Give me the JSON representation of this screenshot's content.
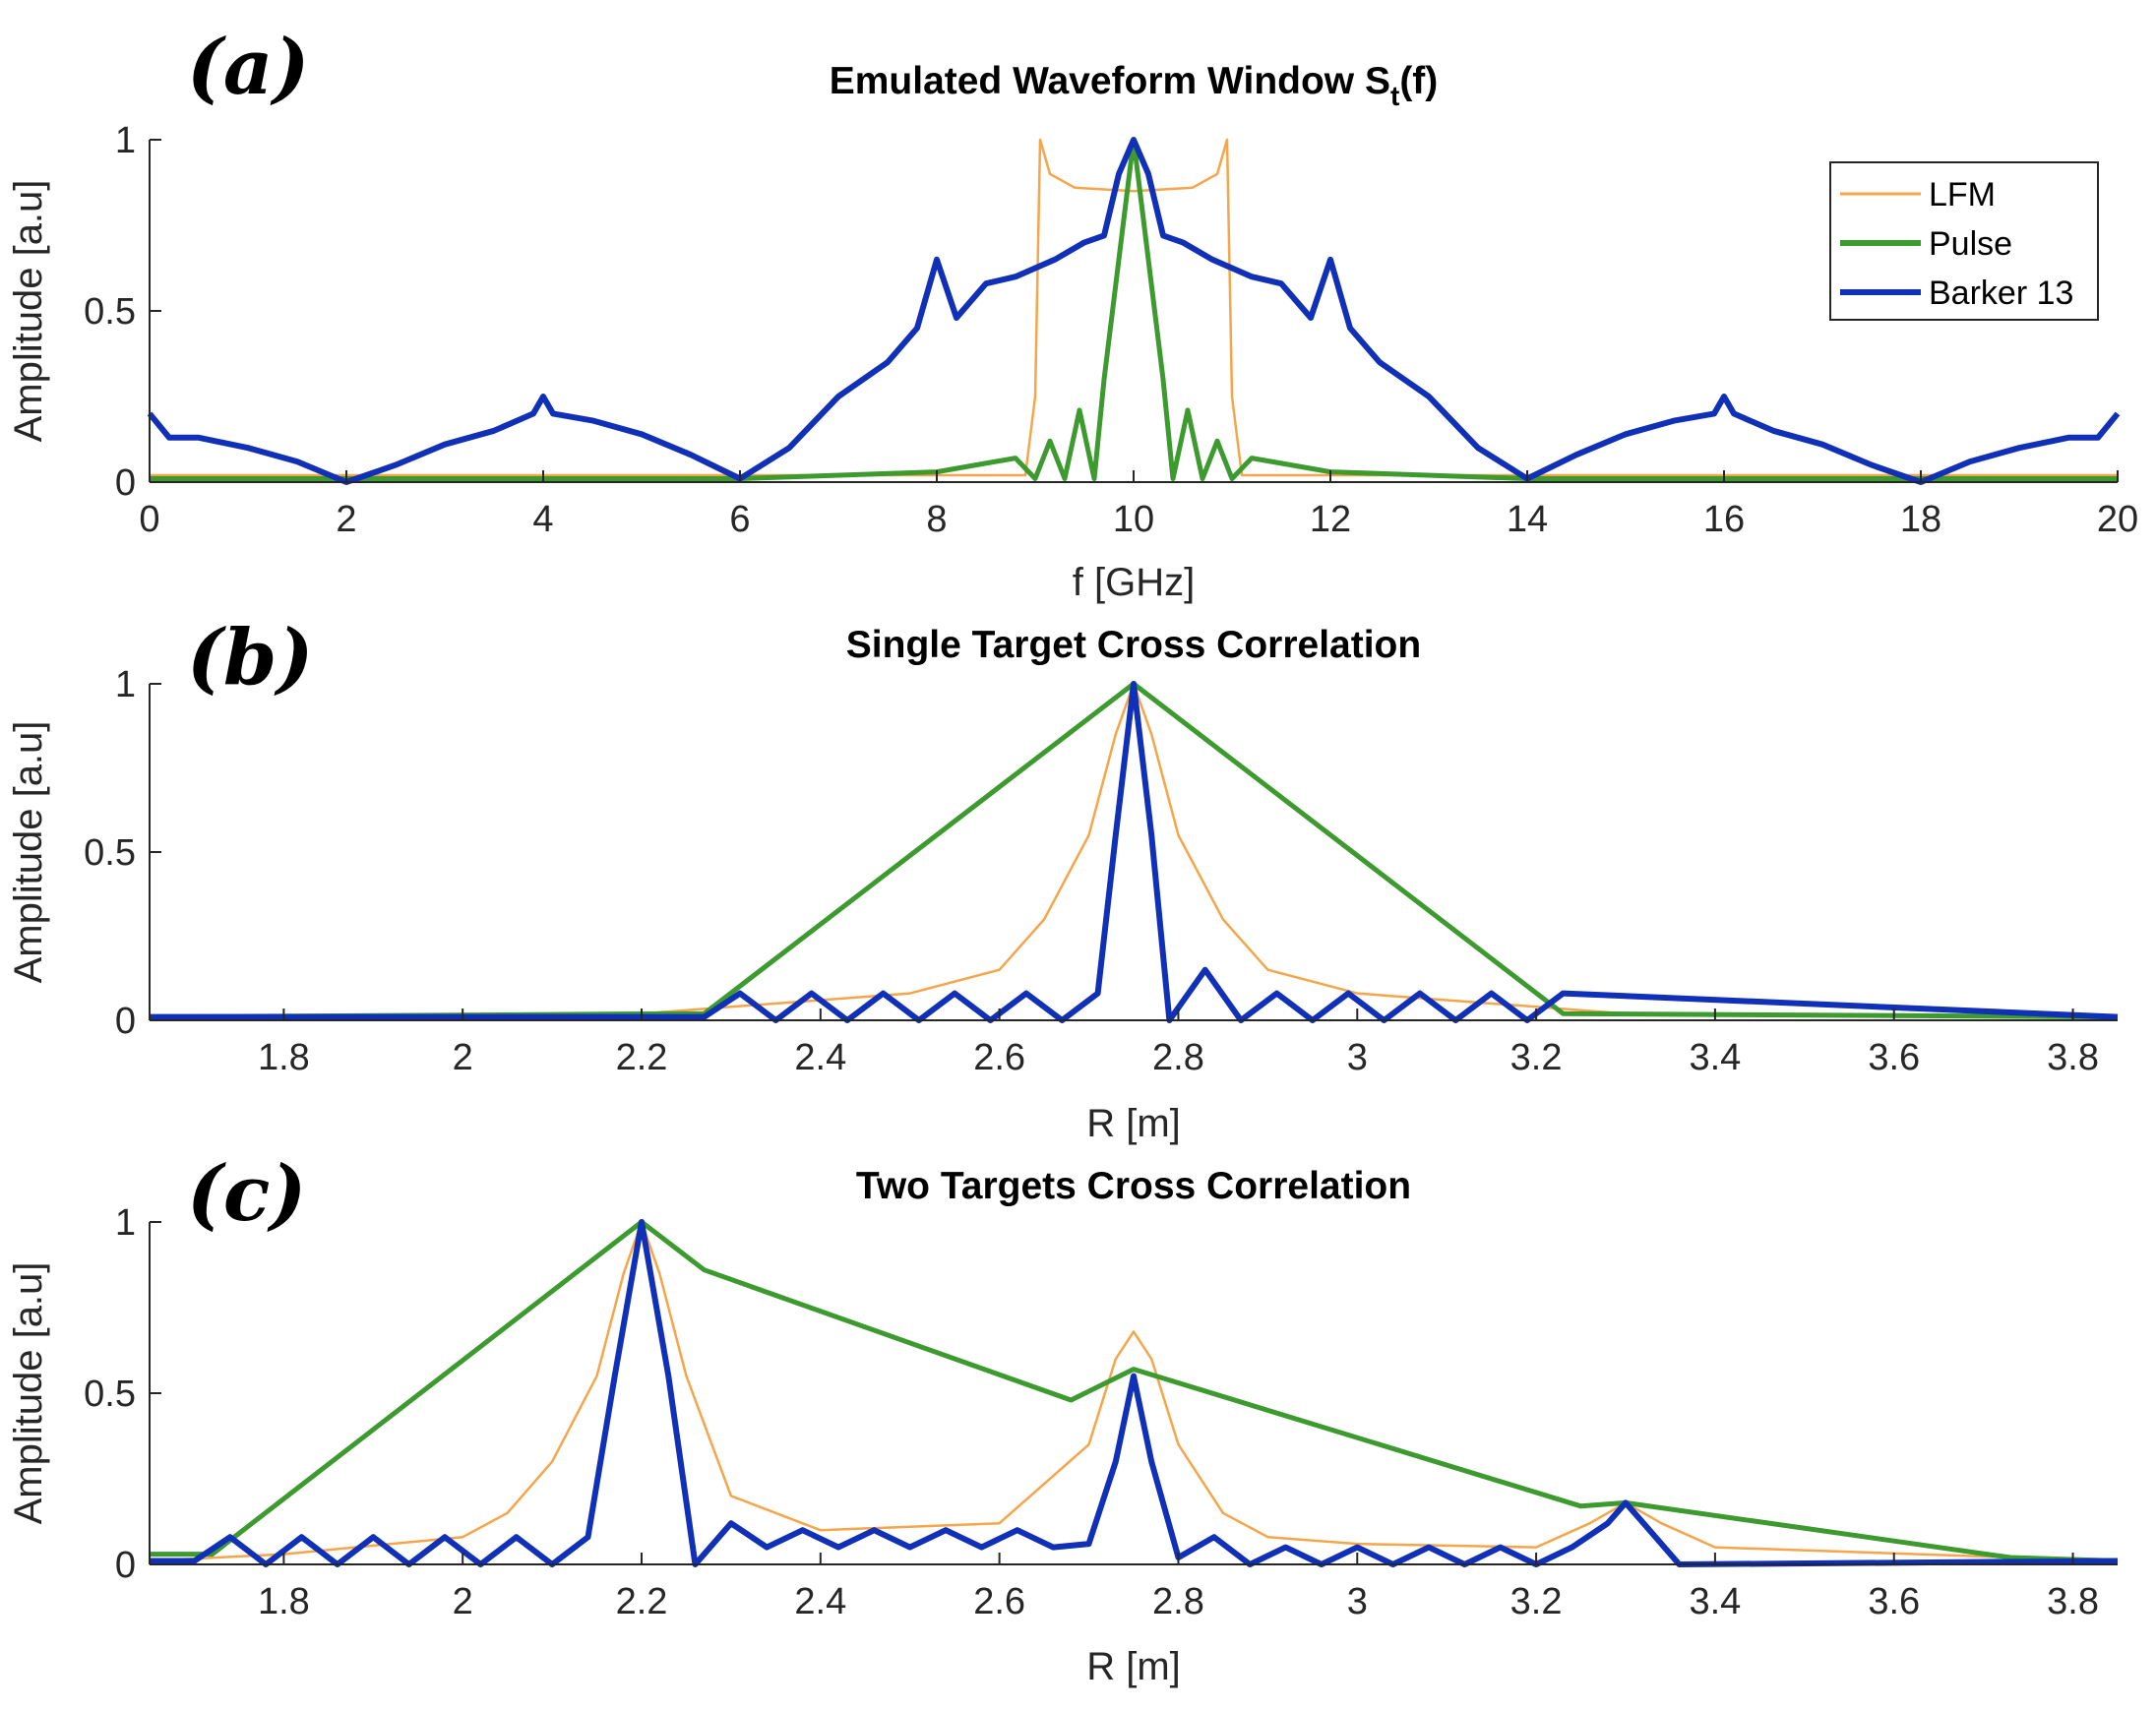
{
  "colors": {
    "lfm": "#F5A54A",
    "pulse": "#3C9A2E",
    "barker": "#1030B8"
  },
  "legend": {
    "items": [
      {
        "key": "lfm",
        "label": "LFM"
      },
      {
        "key": "pulse",
        "label": "Pulse"
      },
      {
        "key": "barker",
        "label": "Barker 13"
      }
    ]
  },
  "chart_data": [
    {
      "id": "a",
      "tag": "(a)",
      "type": "line",
      "title": "Emulated Waveform Window S",
      "title_subscript": "t",
      "title_suffix": "(f)",
      "xlabel": "f [GHz]",
      "ylabel": "Amplitude [a.u]",
      "xlim": [
        0,
        20
      ],
      "ylim": [
        0,
        1
      ],
      "xticks": [
        0,
        2,
        4,
        6,
        8,
        10,
        12,
        14,
        16,
        18,
        20
      ],
      "xtick_labels": [
        "0",
        "2",
        "4",
        "6",
        "8",
        "10",
        "12",
        "14",
        "16",
        "18",
        "20"
      ],
      "yticks": [
        0,
        0.5,
        1
      ],
      "ytick_labels": [
        "0",
        "0.5",
        "1"
      ],
      "series": [
        {
          "name": "LFM",
          "key": "lfm",
          "x": [
            0,
            8.9,
            9.0,
            9.05,
            9.15,
            9.4,
            10,
            10.6,
            10.85,
            10.95,
            11.0,
            11.1,
            20
          ],
          "y": [
            0.02,
            0.02,
            0.25,
            1.0,
            0.9,
            0.86,
            0.85,
            0.86,
            0.9,
            1.0,
            0.25,
            0.02,
            0.02
          ]
        },
        {
          "name": "Pulse",
          "key": "pulse",
          "x": [
            0,
            6,
            8,
            8.8,
            9.0,
            9.15,
            9.3,
            9.45,
            9.6,
            9.7,
            9.85,
            10,
            10.15,
            10.3,
            10.4,
            10.55,
            10.7,
            10.85,
            11.0,
            11.2,
            12,
            14,
            20
          ],
          "y": [
            0.01,
            0.01,
            0.03,
            0.07,
            0.01,
            0.12,
            0.01,
            0.21,
            0.01,
            0.3,
            0.65,
            1.0,
            0.65,
            0.3,
            0.01,
            0.21,
            0.01,
            0.12,
            0.01,
            0.07,
            0.03,
            0.01,
            0.01
          ]
        },
        {
          "name": "Barker 13",
          "key": "barker",
          "x": [
            0,
            0.2,
            0.5,
            1,
            1.5,
            2,
            2.5,
            3,
            3.5,
            3.9,
            4.0,
            4.1,
            4.5,
            5,
            5.5,
            6,
            6.5,
            7,
            7.5,
            7.8,
            8.0,
            8.2,
            8.5,
            8.8,
            9.2,
            9.5,
            9.7,
            9.85,
            10,
            10.15,
            10.3,
            10.5,
            10.8,
            11.2,
            11.5,
            11.8,
            12.0,
            12.2,
            12.5,
            13,
            13.5,
            14,
            14.5,
            15,
            15.5,
            15.9,
            16.0,
            16.1,
            16.5,
            17,
            17.5,
            18,
            18.5,
            19,
            19.5,
            19.8,
            20
          ],
          "y": [
            0.2,
            0.13,
            0.13,
            0.1,
            0.06,
            0.0,
            0.05,
            0.11,
            0.15,
            0.2,
            0.25,
            0.2,
            0.18,
            0.14,
            0.08,
            0.01,
            0.1,
            0.25,
            0.35,
            0.45,
            0.65,
            0.48,
            0.58,
            0.6,
            0.65,
            0.7,
            0.72,
            0.9,
            1.0,
            0.9,
            0.72,
            0.7,
            0.65,
            0.6,
            0.58,
            0.48,
            0.65,
            0.45,
            0.35,
            0.25,
            0.1,
            0.01,
            0.08,
            0.14,
            0.18,
            0.2,
            0.25,
            0.2,
            0.15,
            0.11,
            0.05,
            0.0,
            0.06,
            0.1,
            0.13,
            0.13,
            0.2
          ]
        }
      ]
    },
    {
      "id": "b",
      "tag": "(b)",
      "type": "line",
      "title": "Single Target Cross Correlation",
      "xlabel": "R [m]",
      "ylabel": "Amplitude [a.u]",
      "xlim": [
        1.65,
        3.85
      ],
      "ylim": [
        0,
        1
      ],
      "xticks": [
        1.8,
        2,
        2.2,
        2.4,
        2.6,
        2.8,
        3,
        3.2,
        3.4,
        3.6,
        3.8
      ],
      "xtick_labels": [
        "1.8",
        "2",
        "2.2",
        "2.4",
        "2.6",
        "2.8",
        "3",
        "3.2",
        "3.4",
        "3.6",
        "3.8"
      ],
      "yticks": [
        0,
        0.5,
        1
      ],
      "ytick_labels": [
        "0",
        "0.5",
        "1"
      ],
      "series": [
        {
          "name": "LFM",
          "key": "lfm",
          "x": [
            1.65,
            2.2,
            2.3,
            2.4,
            2.5,
            2.6,
            2.65,
            2.7,
            2.73,
            2.75,
            2.77,
            2.8,
            2.85,
            2.9,
            3.0,
            3.1,
            3.2,
            3.3,
            3.85
          ],
          "y": [
            0.01,
            0.02,
            0.04,
            0.06,
            0.08,
            0.15,
            0.3,
            0.55,
            0.85,
            1.0,
            0.85,
            0.55,
            0.3,
            0.15,
            0.08,
            0.06,
            0.04,
            0.02,
            0.01
          ]
        },
        {
          "name": "Pulse",
          "key": "pulse",
          "x": [
            1.65,
            2.27,
            2.75,
            3.23,
            3.85
          ],
          "y": [
            0.01,
            0.02,
            1.0,
            0.02,
            0.01
          ]
        },
        {
          "name": "Barker 13",
          "key": "barker",
          "x": [
            1.65,
            2.27,
            2.31,
            2.35,
            2.39,
            2.43,
            2.47,
            2.51,
            2.55,
            2.59,
            2.63,
            2.67,
            2.71,
            2.73,
            2.75,
            2.77,
            2.79,
            2.83,
            2.87,
            2.91,
            2.95,
            2.99,
            3.03,
            3.07,
            3.11,
            3.15,
            3.19,
            3.23,
            3.85
          ],
          "y": [
            0.01,
            0.01,
            0.08,
            0.0,
            0.08,
            0.0,
            0.08,
            0.0,
            0.08,
            0.0,
            0.08,
            0.0,
            0.08,
            0.55,
            1.0,
            0.55,
            0.0,
            0.15,
            0.0,
            0.08,
            0.0,
            0.08,
            0.0,
            0.08,
            0.0,
            0.08,
            0.0,
            0.08,
            0.01
          ]
        }
      ]
    },
    {
      "id": "c",
      "tag": "(c)",
      "type": "line",
      "title": "Two Targets Cross Correlation",
      "xlabel": "R [m]",
      "ylabel": "Amplitude [a.u]",
      "xlim": [
        1.65,
        3.85
      ],
      "ylim": [
        0,
        1
      ],
      "xticks": [
        1.8,
        2,
        2.2,
        2.4,
        2.6,
        2.8,
        3,
        3.2,
        3.4,
        3.6,
        3.8
      ],
      "xtick_labels": [
        "1.8",
        "2",
        "2.2",
        "2.4",
        "2.6",
        "2.8",
        "3",
        "3.2",
        "3.4",
        "3.6",
        "3.8"
      ],
      "yticks": [
        0,
        0.5,
        1
      ],
      "ytick_labels": [
        "0",
        "0.5",
        "1"
      ],
      "series": [
        {
          "name": "LFM",
          "key": "lfm",
          "x": [
            1.65,
            1.8,
            2.0,
            2.05,
            2.1,
            2.15,
            2.18,
            2.2,
            2.22,
            2.25,
            2.3,
            2.35,
            2.4,
            2.6,
            2.7,
            2.73,
            2.75,
            2.77,
            2.8,
            2.85,
            2.9,
            3.0,
            3.2,
            3.26,
            3.3,
            3.34,
            3.4,
            3.85
          ],
          "y": [
            0.01,
            0.03,
            0.08,
            0.15,
            0.3,
            0.55,
            0.85,
            1.0,
            0.85,
            0.55,
            0.2,
            0.15,
            0.1,
            0.12,
            0.35,
            0.6,
            0.68,
            0.6,
            0.35,
            0.15,
            0.08,
            0.06,
            0.05,
            0.12,
            0.18,
            0.12,
            0.05,
            0.01
          ]
        },
        {
          "name": "Pulse",
          "key": "pulse",
          "x": [
            1.65,
            1.72,
            2.2,
            2.27,
            2.68,
            2.75,
            3.25,
            3.3,
            3.73,
            3.85
          ],
          "y": [
            0.03,
            0.03,
            1.0,
            0.86,
            0.48,
            0.57,
            0.17,
            0.18,
            0.02,
            0.01
          ]
        },
        {
          "name": "Barker 13",
          "key": "barker",
          "x": [
            1.65,
            1.7,
            1.74,
            1.78,
            1.82,
            1.86,
            1.9,
            1.94,
            1.98,
            2.02,
            2.06,
            2.1,
            2.14,
            2.17,
            2.2,
            2.23,
            2.26,
            2.3,
            2.34,
            2.38,
            2.42,
            2.46,
            2.5,
            2.54,
            2.58,
            2.62,
            2.66,
            2.7,
            2.73,
            2.75,
            2.77,
            2.8,
            2.84,
            2.88,
            2.92,
            2.96,
            3.0,
            3.04,
            3.08,
            3.12,
            3.16,
            3.2,
            3.24,
            3.28,
            3.3,
            3.32,
            3.36,
            3.85
          ],
          "y": [
            0.01,
            0.01,
            0.08,
            0.0,
            0.08,
            0.0,
            0.08,
            0.0,
            0.08,
            0.0,
            0.08,
            0.0,
            0.08,
            0.55,
            1.0,
            0.55,
            0.0,
            0.12,
            0.05,
            0.1,
            0.05,
            0.1,
            0.05,
            0.1,
            0.05,
            0.1,
            0.05,
            0.06,
            0.3,
            0.55,
            0.3,
            0.02,
            0.08,
            0.0,
            0.05,
            0.0,
            0.05,
            0.0,
            0.05,
            0.0,
            0.05,
            0.0,
            0.05,
            0.12,
            0.18,
            0.12,
            0.0,
            0.01
          ]
        }
      ]
    }
  ]
}
